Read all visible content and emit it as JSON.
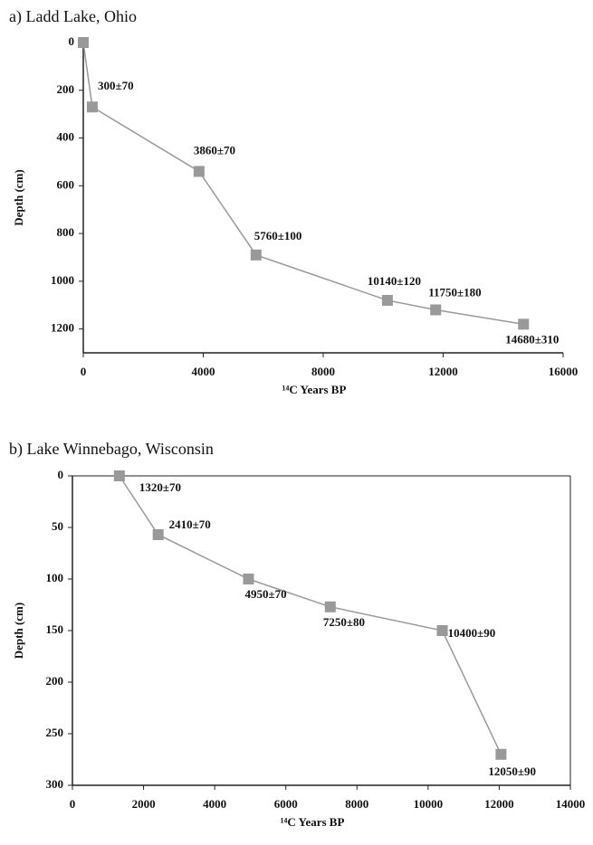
{
  "chart_data": [
    {
      "type": "line",
      "title": "a) Ladd Lake, Ohio",
      "x_label": "¹⁴C Years BP",
      "y_label": "Depth (cm)",
      "x": [
        0,
        300,
        3860,
        5760,
        10140,
        11750,
        14680
      ],
      "series": [
        {
          "name": null,
          "color": "#999999",
          "values": [
            0,
            270,
            540,
            890,
            1080,
            1120,
            1180
          ]
        }
      ],
      "point_labels": [
        null,
        "300±70",
        "3860±70",
        "5760±100",
        "10140±120",
        "11750±180",
        "14680±310"
      ],
      "xlim": [
        0,
        16000
      ],
      "xticks": [
        0,
        4000,
        8000,
        12000,
        16000
      ],
      "ylim": [
        0,
        1300
      ],
      "yticks": [
        0,
        200,
        400,
        600,
        800,
        1000,
        1200
      ],
      "y_inverted": true,
      "frame": false
    },
    {
      "type": "line",
      "title": "b) Lake Winnebago, Wisconsin",
      "x_label": "¹⁴C Years BP",
      "y_label": "Depth (cm)",
      "x": [
        1320,
        2410,
        4950,
        7250,
        10400,
        12050
      ],
      "series": [
        {
          "name": null,
          "color": "#999999",
          "values": [
            0,
            57,
            100,
            127,
            150,
            270
          ]
        }
      ],
      "point_labels": [
        "1320±70",
        "2410±70",
        "4950±70",
        "7250±80",
        "10400±90",
        "12050±90"
      ],
      "xlim": [
        0,
        14000
      ],
      "xticks": [
        0,
        2000,
        4000,
        6000,
        8000,
        10000,
        12000,
        14000
      ],
      "ylim": [
        0,
        300
      ],
      "yticks": [
        0,
        50,
        100,
        150,
        200,
        250,
        300
      ],
      "y_inverted": true,
      "frame": true
    }
  ]
}
